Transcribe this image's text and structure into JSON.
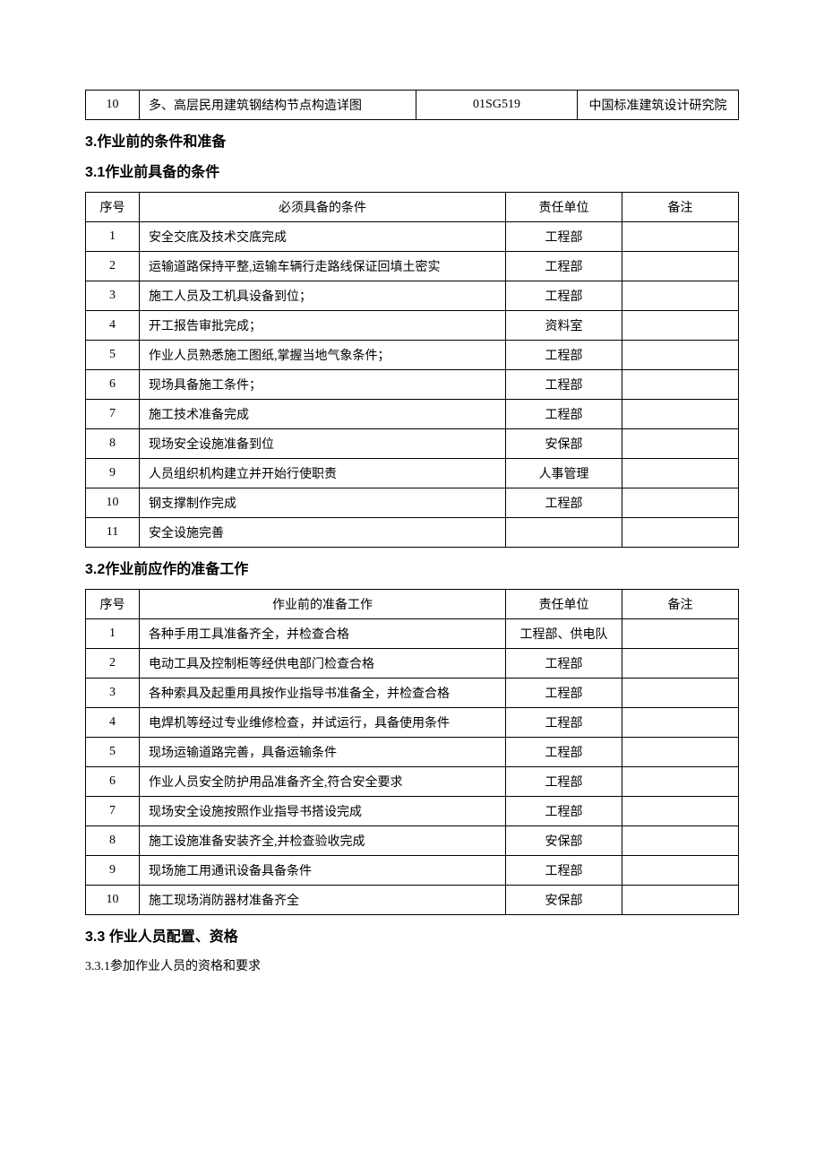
{
  "topTable": {
    "row": {
      "seq": "10",
      "name": "多、高层民用建筑钢结构节点构造详图",
      "code": "01SG519",
      "org": "中国标准建筑设计研究院"
    }
  },
  "section3": {
    "title": "3.作业前的条件和准备"
  },
  "section31": {
    "title": "3.1作业前具备的条件",
    "headers": {
      "seq": "序号",
      "cond": "必须具备的条件",
      "unit": "责任单位",
      "note": "备注"
    },
    "rows": [
      {
        "seq": "1",
        "cond": "安全交底及技术交底完成",
        "unit": "工程部",
        "note": ""
      },
      {
        "seq": "2",
        "cond": "运输道路保持平整,运输车辆行走路线保证回填土密实",
        "unit": "工程部",
        "note": ""
      },
      {
        "seq": "3",
        "cond": "施工人员及工机具设备到位；",
        "unit": "工程部",
        "note": ""
      },
      {
        "seq": "4",
        "cond": "开工报告审批完成；",
        "unit": "资料室",
        "note": ""
      },
      {
        "seq": "5",
        "cond": "作业人员熟悉施工图纸,掌握当地气象条件；",
        "unit": "工程部",
        "note": ""
      },
      {
        "seq": "6",
        "cond": "现场具备施工条件；",
        "unit": "工程部",
        "note": ""
      },
      {
        "seq": "7",
        "cond": "施工技术准备完成",
        "unit": "工程部",
        "note": ""
      },
      {
        "seq": "8",
        "cond": "现场安全设施准备到位",
        "unit": "安保部",
        "note": ""
      },
      {
        "seq": "9",
        "cond": "人员组织机构建立并开始行使职责",
        "unit": "人事管理",
        "note": ""
      },
      {
        "seq": "10",
        "cond": "钢支撑制作完成",
        "unit": "工程部",
        "note": ""
      },
      {
        "seq": "11",
        "cond": "安全设施完善",
        "unit": "",
        "note": ""
      }
    ]
  },
  "section32": {
    "title": "3.2作业前应作的准备工作",
    "headers": {
      "seq": "序号",
      "cond": "作业前的准备工作",
      "unit": "责任单位",
      "note": "备注"
    },
    "rows": [
      {
        "seq": "1",
        "cond": "各种手用工具准备齐全，并检查合格",
        "unit": "工程部、供电队",
        "note": ""
      },
      {
        "seq": "2",
        "cond": "电动工具及控制柜等经供电部门检查合格",
        "unit": "工程部",
        "note": ""
      },
      {
        "seq": "3",
        "cond": "各种索具及起重用具按作业指导书准备全，并检查合格",
        "unit": "工程部",
        "note": ""
      },
      {
        "seq": "4",
        "cond": "电焊机等经过专业维修检查，并试运行，具备使用条件",
        "unit": "工程部",
        "note": ""
      },
      {
        "seq": "5",
        "cond": "现场运输道路完善，具备运输条件",
        "unit": "工程部",
        "note": ""
      },
      {
        "seq": "6",
        "cond": "作业人员安全防护用品准备齐全,符合安全要求",
        "unit": "工程部",
        "note": ""
      },
      {
        "seq": "7",
        "cond": "现场安全设施按照作业指导书搭设完成",
        "unit": "工程部",
        "note": ""
      },
      {
        "seq": "8",
        "cond": "施工设施准备安装齐全,并检查验收完成",
        "unit": "安保部",
        "note": ""
      },
      {
        "seq": "9",
        "cond": "现场施工用通讯设备具备条件",
        "unit": "工程部",
        "note": ""
      },
      {
        "seq": "10",
        "cond": "施工现场消防器材准备齐全",
        "unit": "安保部",
        "note": ""
      }
    ]
  },
  "section33": {
    "title": "3.3 作业人员配置、资格"
  },
  "section331": {
    "title": "3.3.1参加作业人员的资格和要求"
  }
}
